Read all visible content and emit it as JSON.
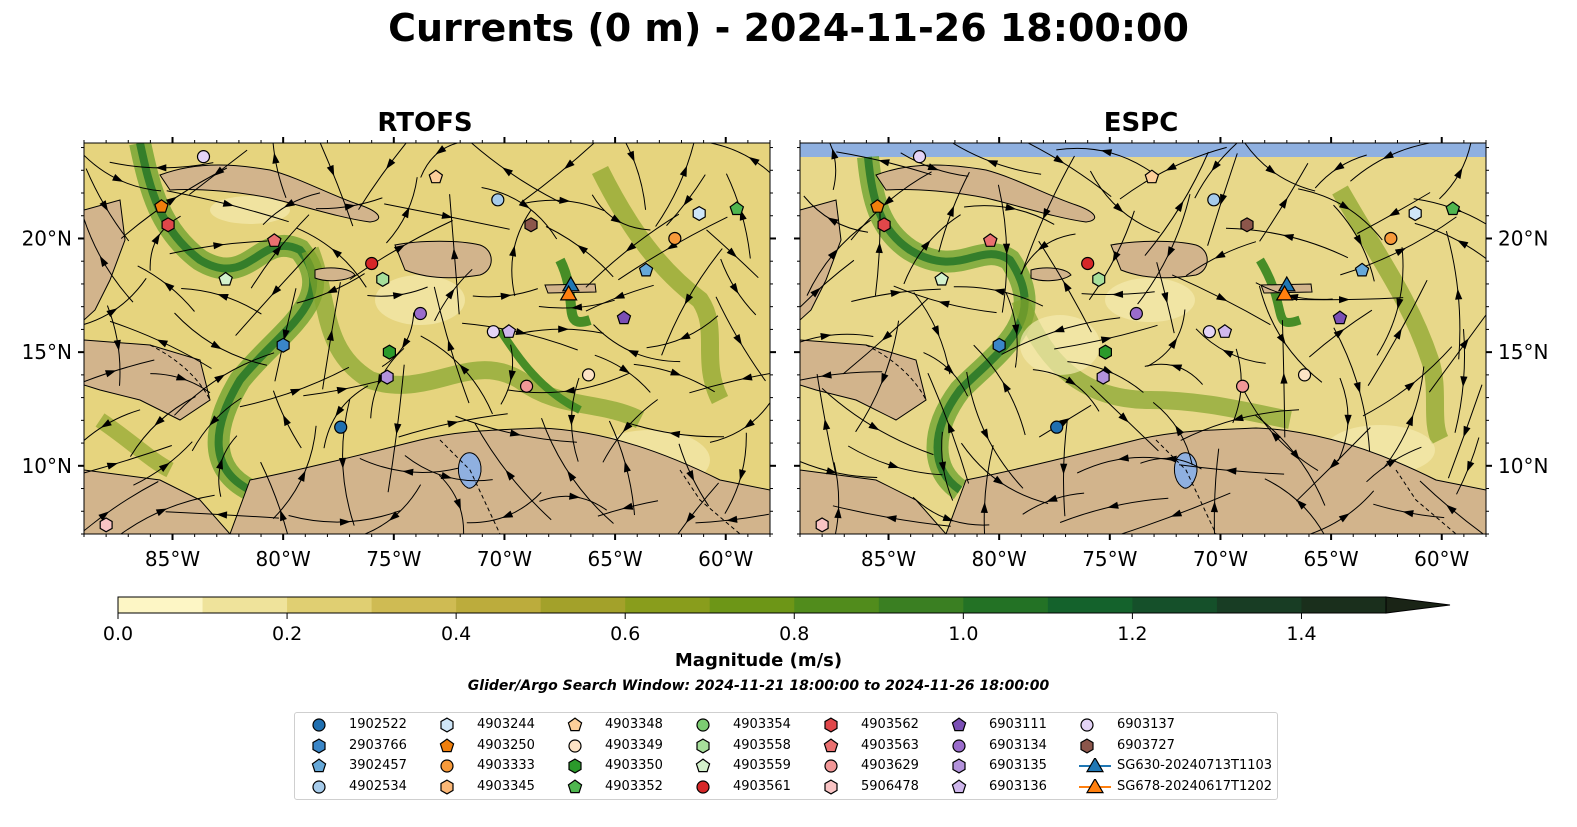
{
  "title": "Currents (0 m) - 2024-11-26 18:00:00",
  "panels": [
    {
      "title": "RTOFS"
    },
    {
      "title": "ESPC"
    }
  ],
  "axes": {
    "lon_ticks": [
      "85°W",
      "80°W",
      "75°W",
      "70°W",
      "65°W",
      "60°W"
    ],
    "lat_ticks": [
      "20°N",
      "15°N",
      "10°N"
    ]
  },
  "colorbar": {
    "label": "Magnitude (m/s)",
    "ticks": [
      "0.0",
      "0.2",
      "0.4",
      "0.6",
      "0.8",
      "1.0",
      "1.2",
      "1.4"
    ],
    "colors": [
      "#fdf6c5",
      "#efe39b",
      "#e0cf72",
      "#cfbb53",
      "#bcac3c",
      "#a3a12a",
      "#899d1c",
      "#6d9617",
      "#518c1c",
      "#3a7f22",
      "#237225",
      "#14622c",
      "#15502a",
      "#183d24",
      "#1a2f1c",
      "#1a2416"
    ]
  },
  "window_note": "Glider/Argo Search Window: 2024-11-21 18:00:00 to 2024-11-26 18:00:00",
  "map_colors": {
    "land": "#d2b48c",
    "lake": "#8fb0e0",
    "streamline": "#000000"
  },
  "legend": [
    {
      "label": "1902522",
      "marker": "circle",
      "color": "#1f6fb0"
    },
    {
      "label": "2903766",
      "marker": "hexagon",
      "color": "#3a86c8"
    },
    {
      "label": "3902457",
      "marker": "pentagon",
      "color": "#66a8d8"
    },
    {
      "label": "4902534",
      "marker": "circle",
      "color": "#a6cbea"
    },
    {
      "label": "4903244",
      "marker": "hexagon",
      "color": "#cfe6f8"
    },
    {
      "label": "4903250",
      "marker": "pentagon",
      "color": "#f07f0c"
    },
    {
      "label": "4903333",
      "marker": "circle",
      "color": "#f79a3a"
    },
    {
      "label": "4903345",
      "marker": "hexagon",
      "color": "#fcb877"
    },
    {
      "label": "4903348",
      "marker": "pentagon",
      "color": "#fdcf9a"
    },
    {
      "label": "4903349",
      "marker": "circle",
      "color": "#fde3c5"
    },
    {
      "label": "4903350",
      "marker": "hexagon",
      "color": "#2b9a2b"
    },
    {
      "label": "4903352",
      "marker": "pentagon",
      "color": "#4fb64f"
    },
    {
      "label": "4903354",
      "marker": "circle",
      "color": "#7ccc72"
    },
    {
      "label": "4903558",
      "marker": "hexagon",
      "color": "#a7df9b"
    },
    {
      "label": "4903559",
      "marker": "pentagon",
      "color": "#d4f1cc"
    },
    {
      "label": "4903561",
      "marker": "circle",
      "color": "#d62728"
    },
    {
      "label": "4903562",
      "marker": "hexagon",
      "color": "#e0474a"
    },
    {
      "label": "4903563",
      "marker": "pentagon",
      "color": "#ea7070"
    },
    {
      "label": "4903629",
      "marker": "circle",
      "color": "#f29797"
    },
    {
      "label": "5906478",
      "marker": "hexagon",
      "color": "#f9c4c4"
    },
    {
      "label": "6903111",
      "marker": "pentagon",
      "color": "#7b4fb5"
    },
    {
      "label": "6903134",
      "marker": "circle",
      "color": "#9a6ccb"
    },
    {
      "label": "6903135",
      "marker": "hexagon",
      "color": "#b392db"
    },
    {
      "label": "6903136",
      "marker": "pentagon",
      "color": "#cfb7ec"
    },
    {
      "label": "6903137",
      "marker": "circle",
      "color": "#e4d4f6"
    },
    {
      "label": "6903727",
      "marker": "hexagon",
      "color": "#8c564b"
    },
    {
      "label": "SG630-20240713T1103",
      "marker": "triangle-line",
      "color": "#1f77b4"
    },
    {
      "label": "SG678-20240617T1202",
      "marker": "triangle-line",
      "color": "#ff7f0e"
    }
  ],
  "floats": [
    {
      "id": "6903137",
      "lon": -83.6,
      "lat": 23.6
    },
    {
      "id": "4903250",
      "lon": -85.5,
      "lat": 21.4
    },
    {
      "id": "4903562",
      "lon": -85.2,
      "lat": 20.6
    },
    {
      "id": "4903563",
      "lon": -80.4,
      "lat": 19.9
    },
    {
      "id": "4903559",
      "lon": -82.6,
      "lat": 18.2
    },
    {
      "id": "4903561",
      "lon": -76.0,
      "lat": 18.9
    },
    {
      "id": "4903558",
      "lon": -75.5,
      "lat": 18.2
    },
    {
      "id": "4903348",
      "lon": -73.1,
      "lat": 22.7
    },
    {
      "id": "4902534",
      "lon": -70.3,
      "lat": 21.7
    },
    {
      "id": "6903727",
      "lon": -68.8,
      "lat": 20.6
    },
    {
      "id": "4903333",
      "lon": -62.3,
      "lat": 20.0
    },
    {
      "id": "4903244",
      "lon": -61.2,
      "lat": 21.1
    },
    {
      "id": "4903352",
      "lon": -59.5,
      "lat": 21.3
    },
    {
      "id": "3902457",
      "lon": -63.6,
      "lat": 18.6
    },
    {
      "id": "6903134",
      "lon": -73.8,
      "lat": 16.7
    },
    {
      "id": "6903111",
      "lon": -64.6,
      "lat": 16.5
    },
    {
      "id": "4903350",
      "lon": -75.2,
      "lat": 15.0
    },
    {
      "id": "2903766",
      "lon": -80.0,
      "lat": 15.3
    },
    {
      "id": "6903135",
      "lon": -75.3,
      "lat": 13.9
    },
    {
      "id": "6903137",
      "lon": -70.5,
      "lat": 15.9
    },
    {
      "id": "6903136",
      "lon": -69.8,
      "lat": 15.9
    },
    {
      "id": "4903629",
      "lon": -69.0,
      "lat": 13.5
    },
    {
      "id": "4903349",
      "lon": -66.2,
      "lat": 14.0
    },
    {
      "id": "1902522",
      "lon": -77.4,
      "lat": 11.7
    },
    {
      "id": "5906478",
      "lon": -88.0,
      "lat": 7.4
    },
    {
      "id": "SG630-20240713T1103",
      "lon": -67.0,
      "lat": 17.9
    },
    {
      "id": "SG678-20240617T1202",
      "lon": -67.1,
      "lat": 17.5
    }
  ]
}
